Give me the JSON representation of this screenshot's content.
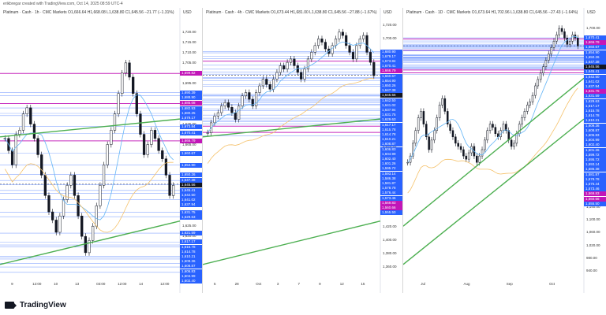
{
  "header": {
    "caption": "erikbregar created with TradingView.com, Oct 14, 2025 08:59 UTC-4"
  },
  "footer": {
    "brand": "TradingView"
  },
  "colors": {
    "up": "#131722",
    "down": "#131722",
    "blue_tag": "#2962ff",
    "magenta": "#c216b8",
    "green": "#4caf50",
    "sma_blue": "#64b5f6",
    "sma_orange": "#f5c26b",
    "current": "#131722"
  },
  "chart_data": [
    {
      "type": "candlestick",
      "title": "Platinum · Cash · 1h · CMC Markets",
      "ohlc_text": "O1,666.64 H1,668.08 L1,638.80 C1,645.56 −21.77 (−1.31%)",
      "currency": "USD",
      "ylim": [
        1600,
        1725
      ],
      "x_ticks": [
        "9",
        "12:00",
        "10",
        "13",
        "03:00",
        "12:00",
        "14",
        "12:00"
      ],
      "y_ticks": [
        1720,
        1715,
        1710,
        1705,
        1700,
        1695,
        1690,
        1685,
        1680,
        1675,
        1670,
        1665,
        1660,
        1655,
        1650,
        1645,
        1640,
        1635,
        1630,
        1625,
        1620,
        1615,
        1610,
        1605,
        1600
      ],
      "levels": [
        {
          "v": 1699.82,
          "c": "magenta"
        },
        {
          "v": 1690.39,
          "c": "blue"
        },
        {
          "v": 1688.9,
          "c": "blue"
        },
        {
          "v": 1685.08,
          "c": "magenta"
        },
        {
          "v": 1682.93,
          "c": "blue"
        },
        {
          "v": 1680.25,
          "c": "blue"
        },
        {
          "v": 1679.17,
          "c": "blue"
        },
        {
          "v": 1673.84,
          "c": "blue"
        },
        {
          "v": 1670.41,
          "c": "blue"
        },
        {
          "v": 1666.79,
          "c": "magenta"
        },
        {
          "v": 1660.67,
          "c": "blue"
        },
        {
          "v": 1654.9,
          "c": "blue"
        },
        {
          "v": 1650.26,
          "c": "blue"
        },
        {
          "v": 1647.38,
          "c": "blue"
        },
        {
          "v": 1645.56,
          "c": "current"
        },
        {
          "v": 1645.41,
          "c": "blue"
        },
        {
          "v": 1642.5,
          "c": "blue"
        },
        {
          "v": 1641.02,
          "c": "blue"
        },
        {
          "v": 1637.94,
          "c": "blue"
        },
        {
          "v": 1631.75,
          "c": "blue"
        },
        {
          "v": 1629.63,
          "c": "blue"
        },
        {
          "v": 1621.59,
          "c": "blue"
        },
        {
          "v": 1617.17,
          "c": "blue"
        },
        {
          "v": 1615.78,
          "c": "blue"
        },
        {
          "v": 1614.78,
          "c": "blue"
        },
        {
          "v": 1610.21,
          "c": "blue"
        },
        {
          "v": 1609.36,
          "c": "blue"
        },
        {
          "v": 1608.87,
          "c": "blue"
        },
        {
          "v": 1606.83,
          "c": "blue"
        },
        {
          "v": 1604.99,
          "c": "blue"
        },
        {
          "v": 1602.4,
          "c": "blue"
        }
      ],
      "closes": [
        1668,
        1662,
        1655,
        1670,
        1672,
        1680,
        1683,
        1675,
        1668,
        1660,
        1650,
        1640,
        1632,
        1628,
        1622,
        1630,
        1638,
        1645,
        1650,
        1640,
        1630,
        1620,
        1612,
        1618,
        1625,
        1635,
        1645,
        1655,
        1665,
        1672,
        1680,
        1690,
        1700,
        1705,
        1698,
        1690,
        1680,
        1670,
        1660,
        1665,
        1672,
        1668,
        1662,
        1658,
        1650,
        1640,
        1645
      ]
    },
    {
      "type": "candlestick",
      "title": "Platinum · Cash · 4h · CMC Markets",
      "ohlc_text": "O1,673.44 H1,681.00 L1,638.80 C1,645.56 −27.88 (−1.67%)",
      "currency": "USD",
      "ylim": [
        1345,
        1725
      ],
      "x_ticks": [
        "5",
        "28",
        "Oct",
        "3",
        "7",
        "9",
        "12",
        "15"
      ],
      "y_ticks": [
        1720,
        1700,
        1680,
        1660,
        1640,
        1620,
        1600,
        1580,
        1560,
        1540,
        1520,
        1500,
        1480,
        1460,
        1440,
        1420,
        1400,
        1380,
        1360
      ],
      "levels": [
        {
          "v": 1680.9,
          "c": "blue"
        },
        {
          "v": 1679.17,
          "c": "blue"
        },
        {
          "v": 1673.84,
          "c": "blue"
        },
        {
          "v": 1670.41,
          "c": "blue"
        },
        {
          "v": 1666.79,
          "c": "magenta"
        },
        {
          "v": 1660.67,
          "c": "blue"
        },
        {
          "v": 1654.9,
          "c": "blue"
        },
        {
          "v": 1650.26,
          "c": "blue"
        },
        {
          "v": 1647.38,
          "c": "blue"
        },
        {
          "v": 1645.56,
          "c": "current"
        },
        {
          "v": 1642.5,
          "c": "blue"
        },
        {
          "v": 1641.02,
          "c": "blue"
        },
        {
          "v": 1637.94,
          "c": "blue"
        },
        {
          "v": 1631.75,
          "c": "blue"
        },
        {
          "v": 1629.63,
          "c": "blue"
        },
        {
          "v": 1617.17,
          "c": "blue"
        },
        {
          "v": 1615.78,
          "c": "blue"
        },
        {
          "v": 1614.78,
          "c": "blue"
        },
        {
          "v": 1610.21,
          "c": "blue"
        },
        {
          "v": 1608.87,
          "c": "blue"
        },
        {
          "v": 1606.83,
          "c": "blue"
        },
        {
          "v": 1604.99,
          "c": "blue"
        },
        {
          "v": 1602.4,
          "c": "blue"
        },
        {
          "v": 1601.26,
          "c": "blue"
        },
        {
          "v": 1595.72,
          "c": "blue"
        },
        {
          "v": 1593.14,
          "c": "blue"
        },
        {
          "v": 1586.38,
          "c": "blue"
        },
        {
          "v": 1581.87,
          "c": "blue"
        },
        {
          "v": 1578.78,
          "c": "blue"
        },
        {
          "v": 1576.44,
          "c": "blue"
        },
        {
          "v": 1573.46,
          "c": "blue"
        },
        {
          "v": 1569.83,
          "c": "magenta"
        },
        {
          "v": 1560.66,
          "c": "magenta"
        },
        {
          "v": 1555.5,
          "c": "blue"
        }
      ],
      "closes": [
        1560,
        1575,
        1585,
        1590,
        1600,
        1605,
        1598,
        1590,
        1580,
        1600,
        1615,
        1620,
        1610,
        1600,
        1620,
        1630,
        1640,
        1632,
        1625,
        1640,
        1650,
        1660,
        1655,
        1665,
        1670,
        1660,
        1650,
        1640,
        1655,
        1670,
        1680,
        1690,
        1700,
        1695,
        1685,
        1678,
        1690,
        1700,
        1710,
        1705,
        1690,
        1680,
        1670,
        1690,
        1700,
        1705,
        1680,
        1665,
        1645
      ]
    },
    {
      "type": "candlestick",
      "title": "Platinum · Cash · 1D · CMC Markets",
      "ohlc_text": "O1,673.64 H1,702.96 L1,638.80 C1,645.56 −27.43 (−1.64%)",
      "currency": "USD",
      "ylim": [
        920,
        1720
      ],
      "x_ticks": [
        "Jul",
        "Aug",
        "Sep",
        "Oct"
      ],
      "y_ticks": [
        1700,
        1660,
        1620,
        1580,
        1540,
        1500,
        1460,
        1420,
        1380,
        1340,
        1300,
        1260,
        1220,
        1180,
        1140,
        1100,
        1060,
        1020,
        980,
        940
      ],
      "levels": [
        {
          "v": 1670.41,
          "c": "blue"
        },
        {
          "v": 1666.79,
          "c": "magenta"
        },
        {
          "v": 1660.67,
          "c": "blue"
        },
        {
          "v": 1654.9,
          "c": "blue"
        },
        {
          "v": 1650.26,
          "c": "blue"
        },
        {
          "v": 1647.38,
          "c": "blue"
        },
        {
          "v": 1645.56,
          "c": "current"
        },
        {
          "v": 1645.41,
          "c": "blue"
        },
        {
          "v": 1642.5,
          "c": "blue"
        },
        {
          "v": 1641.02,
          "c": "blue"
        },
        {
          "v": 1637.94,
          "c": "blue"
        },
        {
          "v": 1631.75,
          "c": "magenta"
        },
        {
          "v": 1631.59,
          "c": "blue"
        },
        {
          "v": 1629.63,
          "c": "blue"
        },
        {
          "v": 1617.17,
          "c": "blue"
        },
        {
          "v": 1615.78,
          "c": "blue"
        },
        {
          "v": 1614.78,
          "c": "blue"
        },
        {
          "v": 1610.21,
          "c": "blue"
        },
        {
          "v": 1609.36,
          "c": "blue"
        },
        {
          "v": 1608.87,
          "c": "blue"
        },
        {
          "v": 1606.83,
          "c": "blue"
        },
        {
          "v": 1604.99,
          "c": "blue"
        },
        {
          "v": 1602.4,
          "c": "blue"
        },
        {
          "v": 1601.26,
          "c": "blue"
        },
        {
          "v": 1599.72,
          "c": "blue"
        },
        {
          "v": 1595.72,
          "c": "blue"
        },
        {
          "v": 1593.14,
          "c": "blue"
        },
        {
          "v": 1586.38,
          "c": "blue"
        },
        {
          "v": 1581.87,
          "c": "blue"
        },
        {
          "v": 1578.78,
          "c": "blue"
        },
        {
          "v": 1576.44,
          "c": "blue"
        },
        {
          "v": 1573.46,
          "c": "blue"
        },
        {
          "v": 1569.83,
          "c": "magenta"
        },
        {
          "v": 1560.66,
          "c": "magenta"
        },
        {
          "v": 1555.5,
          "c": "blue"
        }
      ],
      "closes": [
        1280,
        1300,
        1340,
        1380,
        1420,
        1440,
        1400,
        1360,
        1320,
        1350,
        1380,
        1420,
        1460,
        1480,
        1440,
        1400,
        1380,
        1360,
        1340,
        1330,
        1320,
        1300,
        1290,
        1310,
        1330,
        1300,
        1280,
        1300,
        1320,
        1350,
        1380,
        1400,
        1390,
        1370,
        1360,
        1380,
        1400,
        1380,
        1350,
        1330,
        1340,
        1370,
        1400,
        1420,
        1440,
        1460,
        1470,
        1490,
        1520,
        1540,
        1560,
        1580,
        1600,
        1620,
        1640,
        1660,
        1680,
        1700,
        1690,
        1670,
        1650,
        1660,
        1680,
        1670,
        1645
      ]
    }
  ]
}
